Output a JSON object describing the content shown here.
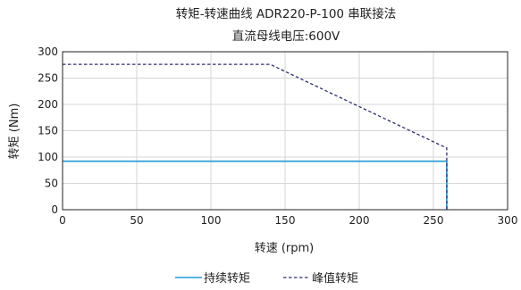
{
  "chart_data": {
    "type": "line",
    "title": [
      "转矩-转速曲线 ADR220-P-100 串联接法",
      "直流母线电压:600V"
    ],
    "xlabel": "转速 (rpm)",
    "ylabel": "转矩 (Nm)",
    "xlim": [
      0,
      300
    ],
    "ylim": [
      0,
      300
    ],
    "xticks": [
      0,
      50,
      100,
      150,
      200,
      250,
      300
    ],
    "yticks": [
      0,
      50,
      100,
      150,
      200,
      250,
      300
    ],
    "grid": true,
    "legend_position": "bottom",
    "series": [
      {
        "name": "持续转矩",
        "style": "solid",
        "color": "#1f9bd6",
        "x": [
          0,
          259,
          259
        ],
        "y": [
          92,
          92,
          0
        ]
      },
      {
        "name": "峰值转矩",
        "style": "dashed",
        "color": "#2b2d6e",
        "x": [
          0,
          140,
          259,
          259
        ],
        "y": [
          276,
          276,
          117,
          0
        ]
      }
    ]
  }
}
